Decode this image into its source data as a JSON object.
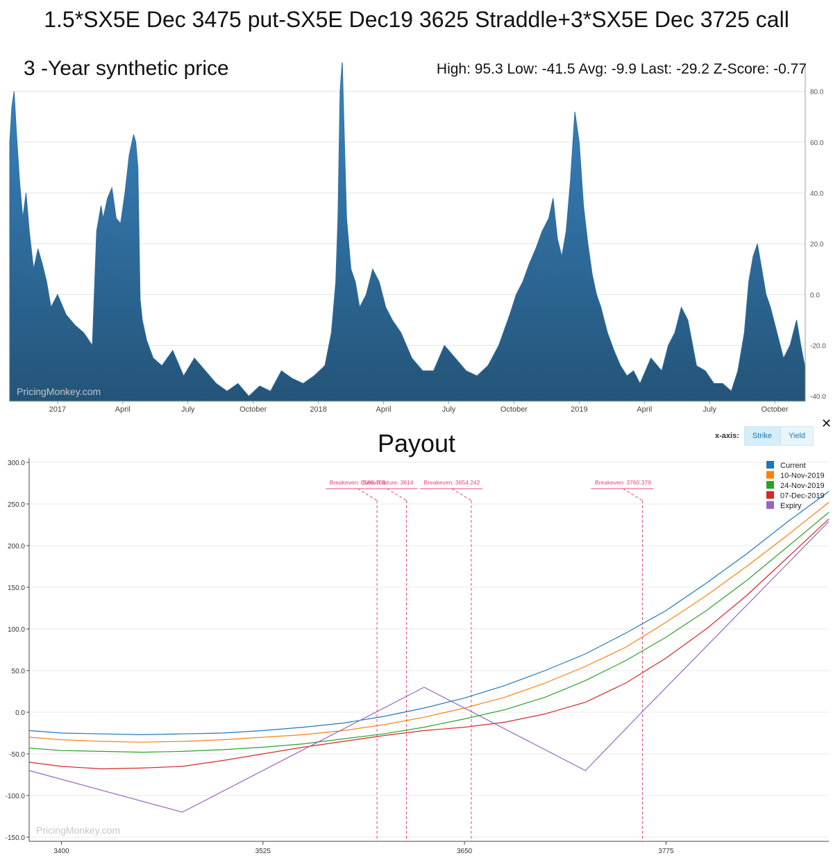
{
  "title": "1.5*SX5E Dec 3475 put-SX5E Dec19 3625 Straddle+3*SX5E Dec 3725 call",
  "history": {
    "subtitle": "3 -Year synthetic price",
    "stats": "High: 95.3 Low: -41.5 Avg: -9.9 Last: -29.2 Z-Score: -0.77",
    "watermark": "PricingMonkey.com",
    "color": "#2f6e9f"
  },
  "payout": {
    "title": "Payout",
    "watermark": "PricingMonkey.com",
    "xaxis_label": "x-axis:",
    "xaxis_options": [
      "Strike",
      "Yield"
    ],
    "close_icon": "close-icon",
    "close_glyph": "✕"
  },
  "chart_data": [
    {
      "type": "area",
      "title": "3 -Year synthetic price",
      "ylim": [
        -42,
        90
      ],
      "y_ticks": [
        80,
        60,
        40,
        20,
        0,
        -20,
        -40
      ],
      "y_tick_labels": [
        "80.0",
        "60.0",
        "40.0",
        "20.0",
        "0.0",
        "-20.0",
        "-40.0"
      ],
      "x_tick_labels": [
        "2017",
        "April",
        "July",
        "October",
        "2018",
        "April",
        "July",
        "October",
        "2019",
        "April",
        "July",
        "October"
      ],
      "x_tick_positions": [
        2.2,
        5.2,
        8.2,
        11.2,
        14.2,
        17.2,
        20.2,
        23.2,
        26.2,
        29.2,
        32.2,
        35.2
      ],
      "x_range": [
        0,
        36.6
      ],
      "grid": true,
      "x": [
        0,
        0.1,
        0.2,
        0.3,
        0.45,
        0.6,
        0.75,
        0.9,
        1.1,
        1.3,
        1.5,
        1.7,
        1.9,
        2.2,
        2.6,
        3.0,
        3.4,
        3.8,
        4.0,
        4.2,
        4.3,
        4.5,
        4.7,
        4.9,
        5.1,
        5.3,
        5.5,
        5.7,
        5.8,
        5.9,
        6.0,
        6.1,
        6.3,
        6.6,
        7.0,
        7.5,
        8.0,
        8.5,
        9.0,
        9.5,
        10.0,
        10.5,
        11.0,
        11.5,
        12.0,
        12.5,
        13.0,
        13.5,
        14.0,
        14.5,
        14.8,
        15.0,
        15.1,
        15.2,
        15.3,
        15.4,
        15.5,
        15.7,
        15.9,
        16.1,
        16.4,
        16.7,
        17.0,
        17.3,
        17.6,
        18.0,
        18.5,
        19.0,
        19.5,
        20.0,
        20.5,
        21.0,
        21.5,
        22.0,
        22.5,
        23.0,
        23.3,
        23.6,
        23.9,
        24.2,
        24.5,
        24.8,
        25.0,
        25.2,
        25.4,
        25.6,
        25.8,
        26.0,
        26.2,
        26.4,
        26.6,
        26.8,
        27.0,
        27.2,
        27.5,
        27.8,
        28.1,
        28.4,
        28.7,
        29.0,
        29.5,
        30.0,
        30.3,
        30.6,
        30.9,
        31.2,
        31.6,
        32.0,
        32.4,
        32.8,
        33.2,
        33.5,
        33.8,
        34.0,
        34.2,
        34.4,
        34.6,
        34.8,
        35.0,
        35.3,
        35.6,
        35.9,
        36.2,
        36.4,
        36.6
      ],
      "y": [
        60,
        74,
        80,
        65,
        45,
        30,
        40,
        25,
        10,
        18,
        12,
        5,
        -5,
        0,
        -8,
        -12,
        -15,
        -20,
        25,
        35,
        30,
        38,
        42,
        30,
        28,
        40,
        55,
        63,
        60,
        50,
        -2,
        -10,
        -18,
        -25,
        -28,
        -22,
        -32,
        -25,
        -30,
        -35,
        -38,
        -35,
        -40,
        -36,
        -38,
        -30,
        -33,
        -35,
        -32,
        -28,
        -15,
        5,
        30,
        80,
        92,
        60,
        30,
        10,
        5,
        -5,
        0,
        10,
        5,
        -5,
        -10,
        -15,
        -25,
        -30,
        -30,
        -20,
        -25,
        -30,
        -32,
        -28,
        -20,
        -8,
        0,
        5,
        12,
        18,
        25,
        30,
        38,
        22,
        15,
        25,
        45,
        72,
        60,
        35,
        20,
        8,
        0,
        -5,
        -15,
        -22,
        -28,
        -32,
        -30,
        -35,
        -25,
        -30,
        -20,
        -15,
        -5,
        -10,
        -28,
        -30,
        -35,
        -35,
        -38,
        -30,
        -15,
        5,
        15,
        20,
        10,
        0,
        -5,
        -15,
        -25,
        -20,
        -10,
        -20,
        -29
      ]
    },
    {
      "type": "line",
      "title": "Payout",
      "xlim": [
        3380,
        3876
      ],
      "ylim": [
        -155,
        305
      ],
      "x_ticks": [
        3400,
        3525,
        3650,
        3775
      ],
      "y_ticks": [
        300,
        250,
        200,
        150,
        100,
        50,
        0,
        -50,
        -100,
        -150
      ],
      "y_tick_labels": [
        "300.0",
        "250.0",
        "200.0",
        "150.0",
        "100.0",
        "50.0",
        "0.0",
        "-50.0",
        "-100.0",
        "-150.0"
      ],
      "grid": true,
      "legend_position": "top-right",
      "series": [
        {
          "name": "Current",
          "color": "#1f77b4",
          "x": [
            3380,
            3400,
            3425,
            3450,
            3475,
            3500,
            3525,
            3550,
            3575,
            3600,
            3625,
            3650,
            3675,
            3700,
            3725,
            3750,
            3775,
            3800,
            3825,
            3850,
            3876
          ],
          "y": [
            -22,
            -25,
            -26,
            -27,
            -26,
            -25,
            -22,
            -18,
            -13,
            -5,
            5,
            17,
            32,
            50,
            70,
            95,
            122,
            155,
            190,
            228,
            265
          ]
        },
        {
          "name": "10-Nov-2019",
          "color": "#ff7f0e",
          "x": [
            3380,
            3400,
            3425,
            3450,
            3475,
            3500,
            3525,
            3550,
            3575,
            3600,
            3625,
            3650,
            3675,
            3700,
            3725,
            3750,
            3775,
            3800,
            3825,
            3850,
            3876
          ],
          "y": [
            -30,
            -33,
            -35,
            -36,
            -35,
            -33,
            -30,
            -27,
            -22,
            -15,
            -6,
            5,
            18,
            35,
            55,
            78,
            108,
            140,
            175,
            212,
            252
          ]
        },
        {
          "name": "24-Nov-2019",
          "color": "#2ca02c",
          "x": [
            3380,
            3400,
            3425,
            3450,
            3475,
            3500,
            3525,
            3550,
            3575,
            3600,
            3625,
            3650,
            3675,
            3700,
            3725,
            3750,
            3775,
            3800,
            3825,
            3850,
            3876
          ],
          "y": [
            -43,
            -46,
            -47,
            -48,
            -47,
            -45,
            -42,
            -38,
            -32,
            -26,
            -18,
            -8,
            3,
            18,
            38,
            62,
            90,
            122,
            158,
            198,
            240
          ]
        },
        {
          "name": "07-Dec-2019",
          "color": "#d62728",
          "x": [
            3380,
            3400,
            3425,
            3450,
            3475,
            3500,
            3525,
            3550,
            3575,
            3600,
            3625,
            3650,
            3675,
            3700,
            3725,
            3750,
            3775,
            3800,
            3825,
            3850,
            3876
          ],
          "y": [
            -60,
            -65,
            -68,
            -67,
            -65,
            -58,
            -50,
            -42,
            -35,
            -28,
            -22,
            -18,
            -12,
            -2,
            12,
            35,
            65,
            100,
            140,
            185,
            232
          ]
        },
        {
          "name": "Expiry",
          "color": "#9467bd",
          "x": [
            3380,
            3475,
            3625,
            3725,
            3760,
            3876
          ],
          "y": [
            -70,
            -120,
            30,
            -70,
            0,
            229
          ]
        }
      ],
      "vlines": [
        {
          "x": 3595.758,
          "label": "Breakeven: 3595.758"
        },
        {
          "x": 3614,
          "label": "Current future: 3614"
        },
        {
          "x": 3654.242,
          "label": "Breakeven: 3654.242"
        },
        {
          "x": 3760.379,
          "label": "Breakeven: 3760.379"
        }
      ]
    }
  ]
}
